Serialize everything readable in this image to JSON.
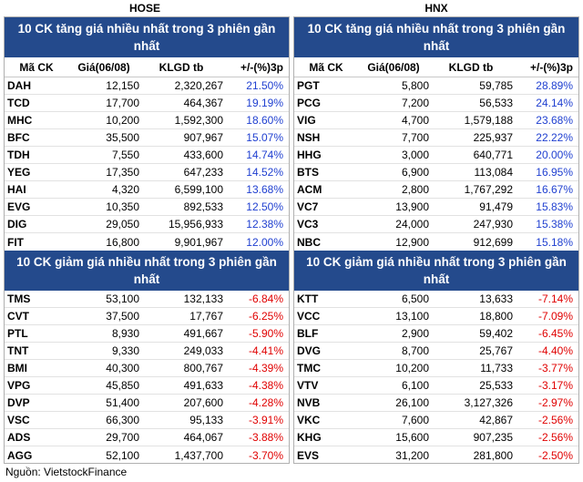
{
  "hose": {
    "exchange": "HOSE",
    "gainers_title": "10 CK tăng giá nhiều nhất trong 3 phiên gần nhất",
    "losers_title": "10 CK giảm giá nhiều nhất trong 3 phiên gần nhất",
    "columns": {
      "symbol": "Mã CK",
      "price": "Giá(06/08)",
      "volume": "KLGD tb",
      "change": "+/-(%)3p"
    },
    "gainers": [
      {
        "symbol": "DAH",
        "price": "12,150",
        "volume": "2,320,267",
        "change": "21.50%"
      },
      {
        "symbol": "TCD",
        "price": "17,700",
        "volume": "464,367",
        "change": "19.19%"
      },
      {
        "symbol": "MHC",
        "price": "10,200",
        "volume": "1,592,300",
        "change": "18.60%"
      },
      {
        "symbol": "BFC",
        "price": "35,500",
        "volume": "907,967",
        "change": "15.07%"
      },
      {
        "symbol": "TDH",
        "price": "7,550",
        "volume": "433,600",
        "change": "14.74%"
      },
      {
        "symbol": "YEG",
        "price": "17,350",
        "volume": "647,233",
        "change": "14.52%"
      },
      {
        "symbol": "HAI",
        "price": "4,320",
        "volume": "6,599,100",
        "change": "13.68%"
      },
      {
        "symbol": "EVG",
        "price": "10,350",
        "volume": "892,533",
        "change": "12.50%"
      },
      {
        "symbol": "DIG",
        "price": "29,050",
        "volume": "15,956,933",
        "change": "12.38%"
      },
      {
        "symbol": "FIT",
        "price": "16,800",
        "volume": "9,901,967",
        "change": "12.00%"
      }
    ],
    "losers": [
      {
        "symbol": "TMS",
        "price": "53,100",
        "volume": "132,133",
        "change": "-6.84%"
      },
      {
        "symbol": "CVT",
        "price": "37,500",
        "volume": "17,767",
        "change": "-6.25%"
      },
      {
        "symbol": "PTL",
        "price": "8,930",
        "volume": "491,667",
        "change": "-5.90%"
      },
      {
        "symbol": "TNT",
        "price": "9,330",
        "volume": "249,033",
        "change": "-4.41%"
      },
      {
        "symbol": "BMI",
        "price": "40,300",
        "volume": "800,767",
        "change": "-4.39%"
      },
      {
        "symbol": "VPG",
        "price": "45,850",
        "volume": "491,633",
        "change": "-4.38%"
      },
      {
        "symbol": "DVP",
        "price": "51,400",
        "volume": "207,600",
        "change": "-4.28%"
      },
      {
        "symbol": "VSC",
        "price": "66,300",
        "volume": "95,133",
        "change": "-3.91%"
      },
      {
        "symbol": "ADS",
        "price": "29,700",
        "volume": "464,067",
        "change": "-3.88%"
      },
      {
        "symbol": "AGG",
        "price": "52,100",
        "volume": "1,437,700",
        "change": "-3.70%"
      }
    ]
  },
  "hnx": {
    "exchange": "HNX",
    "gainers_title": "10 CK tăng giá nhiều nhất trong 3 phiên gần nhất",
    "losers_title": "10 CK giảm giá nhiều nhất trong 3 phiên gần nhất",
    "columns": {
      "symbol": "Mã CK",
      "price": "Giá(06/08)",
      "volume": "KLGD tb",
      "change": "+/-(%)3p"
    },
    "gainers": [
      {
        "symbol": "PGT",
        "price": "5,800",
        "volume": "59,785",
        "change": "28.89%"
      },
      {
        "symbol": "PCG",
        "price": "7,200",
        "volume": "56,533",
        "change": "24.14%"
      },
      {
        "symbol": "VIG",
        "price": "4,700",
        "volume": "1,579,188",
        "change": "23.68%"
      },
      {
        "symbol": "NSH",
        "price": "7,700",
        "volume": "225,937",
        "change": "22.22%"
      },
      {
        "symbol": "HHG",
        "price": "3,000",
        "volume": "640,771",
        "change": "20.00%"
      },
      {
        "symbol": "BTS",
        "price": "6,900",
        "volume": "113,084",
        "change": "16.95%"
      },
      {
        "symbol": "ACM",
        "price": "2,800",
        "volume": "1,767,292",
        "change": "16.67%"
      },
      {
        "symbol": "VC7",
        "price": "13,900",
        "volume": "91,479",
        "change": "15.83%"
      },
      {
        "symbol": "VC3",
        "price": "24,000",
        "volume": "247,930",
        "change": "15.38%"
      },
      {
        "symbol": "NBC",
        "price": "12,900",
        "volume": "912,699",
        "change": "15.18%"
      }
    ],
    "losers": [
      {
        "symbol": "KTT",
        "price": "6,500",
        "volume": "13,633",
        "change": "-7.14%"
      },
      {
        "symbol": "VCC",
        "price": "13,100",
        "volume": "18,800",
        "change": "-7.09%"
      },
      {
        "symbol": "BLF",
        "price": "2,900",
        "volume": "59,402",
        "change": "-6.45%"
      },
      {
        "symbol": "DVG",
        "price": "8,700",
        "volume": "25,767",
        "change": "-4.40%"
      },
      {
        "symbol": "TMC",
        "price": "10,200",
        "volume": "11,733",
        "change": "-3.77%"
      },
      {
        "symbol": "VTV",
        "price": "6,100",
        "volume": "25,533",
        "change": "-3.17%"
      },
      {
        "symbol": "NVB",
        "price": "26,100",
        "volume": "3,127,326",
        "change": "-2.97%"
      },
      {
        "symbol": "VKC",
        "price": "7,600",
        "volume": "42,867",
        "change": "-2.56%"
      },
      {
        "symbol": "KHG",
        "price": "15,600",
        "volume": "907,235",
        "change": "-2.56%"
      },
      {
        "symbol": "EVS",
        "price": "31,200",
        "volume": "281,800",
        "change": "-2.50%"
      }
    ]
  },
  "footer": {
    "source": "Nguồn: VietstockFinance"
  },
  "colors": {
    "header_bg": "#244a8c",
    "gain": "#1f3fd0",
    "loss": "#e00000"
  }
}
